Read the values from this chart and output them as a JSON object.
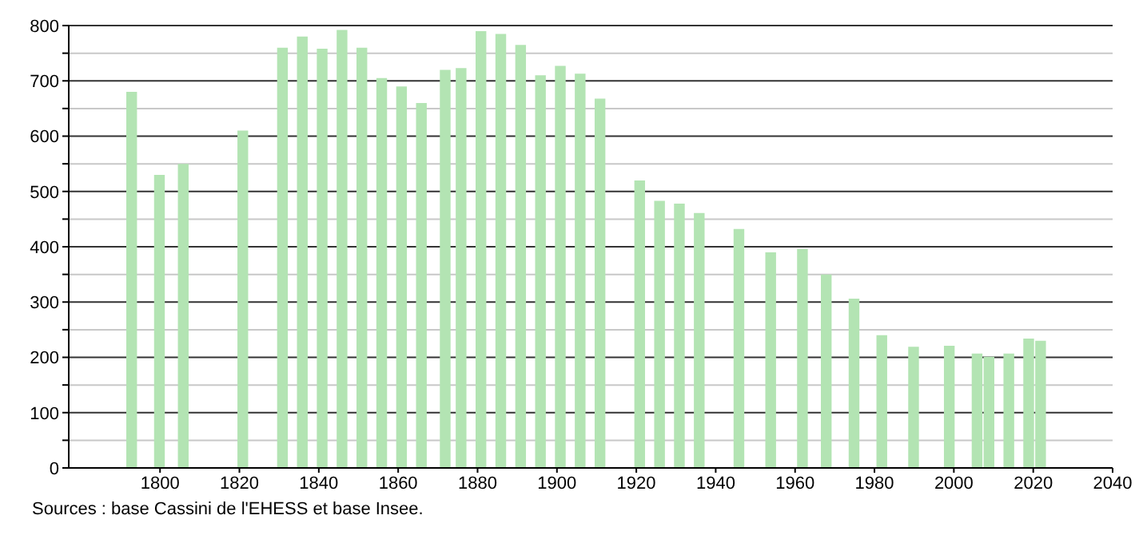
{
  "chart_data": {
    "type": "bar",
    "x": [
      1793,
      1800,
      1806,
      1821,
      1831,
      1836,
      1841,
      1846,
      1851,
      1856,
      1861,
      1866,
      1872,
      1876,
      1881,
      1886,
      1891,
      1896,
      1901,
      1906,
      1911,
      1921,
      1926,
      1931,
      1936,
      1946,
      1954,
      1962,
      1968,
      1975,
      1982,
      1990,
      1999,
      2006,
      2009,
      2014,
      2019,
      2022
    ],
    "values": [
      680,
      530,
      550,
      610,
      760,
      780,
      758,
      792,
      760,
      705,
      690,
      660,
      720,
      723,
      790,
      785,
      765,
      710,
      727,
      713,
      668,
      520,
      483,
      478,
      461,
      432,
      390,
      396,
      350,
      306,
      240,
      219,
      221,
      207,
      201,
      207,
      234,
      230
    ],
    "color": "#b3e4b3",
    "xlim": [
      1777,
      2040
    ],
    "xticks": [
      1800,
      1820,
      1840,
      1860,
      1880,
      1900,
      1920,
      1940,
      1960,
      1980,
      2000,
      2020,
      2040
    ],
    "ylim": [
      0,
      800
    ],
    "yticks": [
      0,
      {
        "value": 50,
        "label": null
      },
      100,
      {
        "value": 150,
        "label": null
      },
      200,
      {
        "value": 250,
        "label": null
      },
      300,
      {
        "value": 350,
        "label": null
      },
      400,
      {
        "value": 450,
        "label": null
      },
      500,
      {
        "value": 550,
        "label": null
      },
      600,
      {
        "value": 650,
        "label": null
      },
      700,
      {
        "value": 750,
        "label": null
      },
      800
    ],
    "grid": "y",
    "annotations": [
      "Sources : base Cassini de l'EHESS et base Insee."
    ]
  }
}
